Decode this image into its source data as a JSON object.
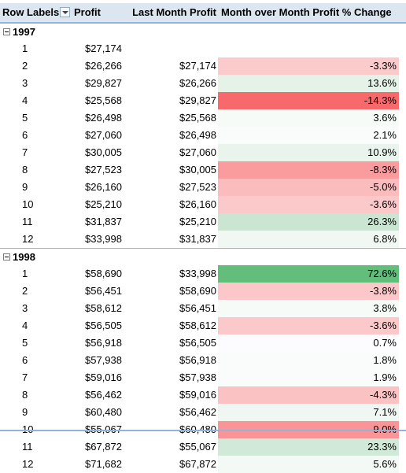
{
  "colors": {
    "header_bg": "#dce6f1",
    "header_border": "#95b3d7"
  },
  "header": {
    "row_labels": "Row Labels",
    "filter_icon": "dropdown-arrow-icon",
    "profit": "Profit",
    "last_month_profit": "Last Month Profit",
    "mom_pct": "Month over Month Profit % Change"
  },
  "groups": [
    {
      "year": "1997",
      "expand_icon": "collapse-minus-icon",
      "rows": [
        {
          "month": "1",
          "profit": "$27,174",
          "last": "",
          "pct": "",
          "color": ""
        },
        {
          "month": "2",
          "profit": "$26,266",
          "last": "$27,174",
          "pct": "-3.3%",
          "color": "#fbcbcc"
        },
        {
          "month": "3",
          "profit": "$29,827",
          "last": "$26,266",
          "pct": "13.6%",
          "color": "#e4f2e8"
        },
        {
          "month": "4",
          "profit": "$25,568",
          "last": "$29,827",
          "pct": "-14.3%",
          "color": "#f8696b"
        },
        {
          "month": "5",
          "profit": "$26,498",
          "last": "$25,568",
          "pct": "3.6%",
          "color": "#f7fbf8"
        },
        {
          "month": "6",
          "profit": "$27,060",
          "last": "$26,498",
          "pct": "2.1%",
          "color": "#fafcfc"
        },
        {
          "month": "7",
          "profit": "$30,005",
          "last": "$27,060",
          "pct": "10.9%",
          "color": "#e9f4ed"
        },
        {
          "month": "8",
          "profit": "$27,523",
          "last": "$30,005",
          "pct": "-8.3%",
          "color": "#fa9b9d"
        },
        {
          "month": "9",
          "profit": "$26,160",
          "last": "$27,523",
          "pct": "-5.0%",
          "color": "#fbbcbd"
        },
        {
          "month": "10",
          "profit": "$25,210",
          "last": "$26,160",
          "pct": "-3.6%",
          "color": "#fbc9ca"
        },
        {
          "month": "11",
          "profit": "$31,837",
          "last": "$25,210",
          "pct": "26.3%",
          "color": "#cae6d3"
        },
        {
          "month": "12",
          "profit": "$33,998",
          "last": "$31,837",
          "pct": "6.8%",
          "color": "#f1f8f3"
        }
      ]
    },
    {
      "year": "1998",
      "expand_icon": "collapse-minus-icon",
      "rows": [
        {
          "month": "1",
          "profit": "$58,690",
          "last": "$33,998",
          "pct": "72.6%",
          "color": "#63be7b"
        },
        {
          "month": "2",
          "profit": "$56,451",
          "last": "$58,690",
          "pct": "-3.8%",
          "color": "#fbc7c8"
        },
        {
          "month": "3",
          "profit": "$58,612",
          "last": "$56,451",
          "pct": "3.8%",
          "color": "#f6fbf7"
        },
        {
          "month": "4",
          "profit": "$56,505",
          "last": "$58,612",
          "pct": "-3.6%",
          "color": "#fbc9ca"
        },
        {
          "month": "5",
          "profit": "$56,918",
          "last": "$56,505",
          "pct": "0.7%",
          "color": "#fcfcff"
        },
        {
          "month": "6",
          "profit": "$57,938",
          "last": "$56,918",
          "pct": "1.8%",
          "color": "#fafcfc"
        },
        {
          "month": "7",
          "profit": "$59,016",
          "last": "$57,938",
          "pct": "1.9%",
          "color": "#fafcfc"
        },
        {
          "month": "8",
          "profit": "$56,462",
          "last": "$59,016",
          "pct": "-4.3%",
          "color": "#fbc2c3"
        },
        {
          "month": "9",
          "profit": "$60,480",
          "last": "$56,462",
          "pct": "7.1%",
          "color": "#f0f7f2"
        },
        {
          "month": "10",
          "profit": "$55,067",
          "last": "$60,480",
          "pct": "-9.0%",
          "color": "#fa9496"
        },
        {
          "month": "11",
          "profit": "$67,872",
          "last": "$55,067",
          "pct": "23.3%",
          "color": "#d1e9d8"
        },
        {
          "month": "12",
          "profit": "$71,682",
          "last": "$67,872",
          "pct": "5.6%",
          "color": "#f3f9f5"
        }
      ]
    }
  ]
}
